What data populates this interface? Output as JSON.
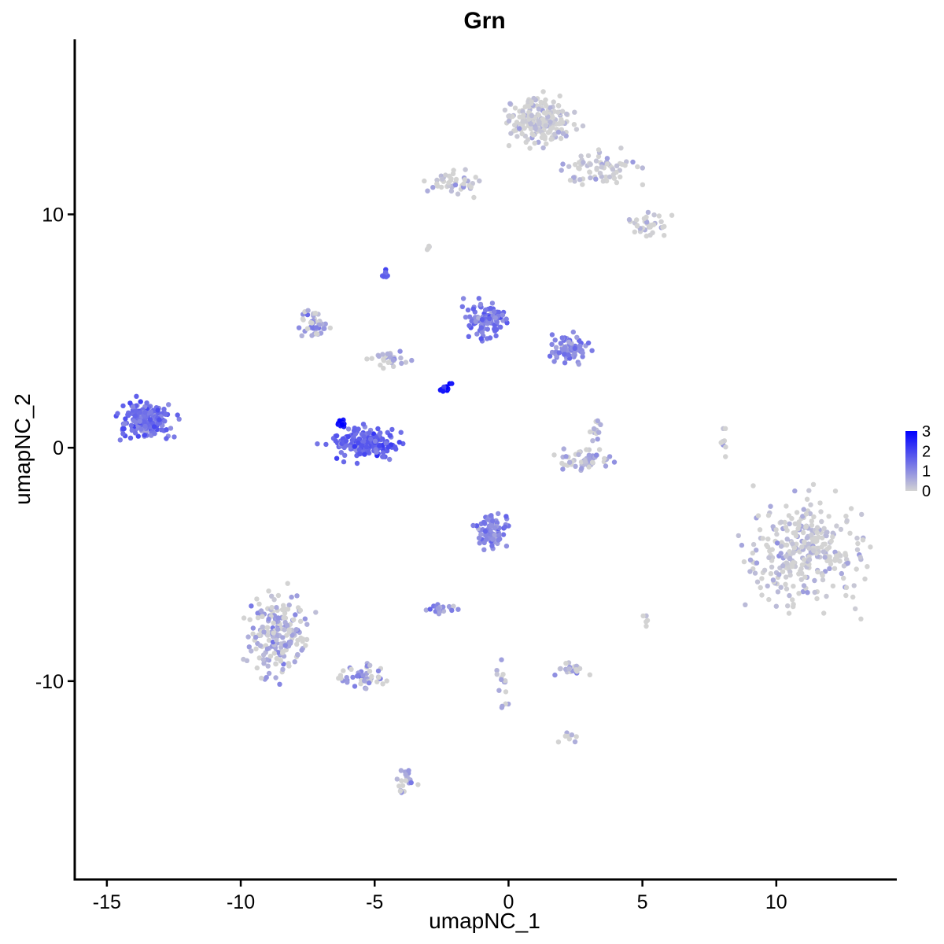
{
  "chart_data": {
    "type": "scatter",
    "title": "Grn",
    "xlabel": "umapNC_1",
    "ylabel": "umapNC_2",
    "xlim": [
      -16.2,
      14.5
    ],
    "ylim": [
      -18.5,
      17.5
    ],
    "xticks": [
      {
        "value": -15,
        "label": "-15"
      },
      {
        "value": -10,
        "label": "-10"
      },
      {
        "value": -5,
        "label": "-5"
      },
      {
        "value": 0,
        "label": "0"
      },
      {
        "value": 5,
        "label": "5"
      },
      {
        "value": 10,
        "label": "10"
      }
    ],
    "yticks": [
      {
        "value": 10,
        "label": "10"
      },
      {
        "value": 0,
        "label": "0"
      },
      {
        "value": -10,
        "label": "-10"
      }
    ],
    "grid": false,
    "legend": {
      "position": "right",
      "type": "colorbar",
      "range": [
        0,
        3
      ],
      "labels": [
        {
          "value": 3,
          "label": "3"
        },
        {
          "value": 2,
          "label": "2"
        },
        {
          "value": 1,
          "label": "1"
        },
        {
          "value": 0,
          "label": "0"
        }
      ]
    },
    "color_low": "#d3d3d3",
    "color_high": "#0000ff",
    "clusters": [
      {
        "center": [
          11.0,
          -4.5
        ],
        "spread": [
          1.8,
          1.8
        ],
        "n": 320,
        "expr": 0.25
      },
      {
        "center": [
          1.2,
          14.0
        ],
        "spread": [
          1.1,
          0.9
        ],
        "n": 200,
        "expr": 0.15
      },
      {
        "center": [
          3.5,
          12.0
        ],
        "spread": [
          1.2,
          0.6
        ],
        "n": 70,
        "expr": 0.2
      },
      {
        "center": [
          5.3,
          9.5
        ],
        "spread": [
          0.6,
          0.5
        ],
        "n": 35,
        "expr": 0.2
      },
      {
        "center": [
          -2.0,
          11.3
        ],
        "spread": [
          0.8,
          0.4
        ],
        "n": 45,
        "expr": 0.25
      },
      {
        "center": [
          -13.5,
          1.2
        ],
        "spread": [
          0.8,
          0.6
        ],
        "n": 180,
        "expr": 1.4
      },
      {
        "center": [
          -5.3,
          0.2
        ],
        "spread": [
          1.0,
          0.5
        ],
        "n": 180,
        "expr": 1.6
      },
      {
        "center": [
          -6.2,
          1.0
        ],
        "spread": [
          0.2,
          0.2
        ],
        "n": 15,
        "expr": 2.9
      },
      {
        "center": [
          -0.8,
          5.5
        ],
        "spread": [
          0.6,
          0.6
        ],
        "n": 90,
        "expr": 1.3
      },
      {
        "center": [
          2.3,
          4.2
        ],
        "spread": [
          0.6,
          0.5
        ],
        "n": 80,
        "expr": 1.1
      },
      {
        "center": [
          -7.3,
          5.3
        ],
        "spread": [
          0.4,
          0.5
        ],
        "n": 45,
        "expr": 0.8
      },
      {
        "center": [
          -4.5,
          3.8
        ],
        "spread": [
          0.6,
          0.3
        ],
        "n": 30,
        "expr": 0.4
      },
      {
        "center": [
          -2.3,
          2.6
        ],
        "spread": [
          0.2,
          0.2
        ],
        "n": 15,
        "expr": 2.8
      },
      {
        "center": [
          -4.6,
          7.4
        ],
        "spread": [
          0.1,
          0.2
        ],
        "n": 10,
        "expr": 1.5
      },
      {
        "center": [
          -0.6,
          -3.6
        ],
        "spread": [
          0.5,
          0.6
        ],
        "n": 80,
        "expr": 1.1
      },
      {
        "center": [
          -8.6,
          -8.0
        ],
        "spread": [
          1.0,
          1.4
        ],
        "n": 200,
        "expr": 0.7
      },
      {
        "center": [
          -5.5,
          -9.8
        ],
        "spread": [
          0.8,
          0.4
        ],
        "n": 50,
        "expr": 0.9
      },
      {
        "center": [
          -3.8,
          -14.3
        ],
        "spread": [
          0.3,
          0.6
        ],
        "n": 20,
        "expr": 0.6
      },
      {
        "center": [
          2.8,
          -0.5
        ],
        "spread": [
          0.9,
          0.4
        ],
        "n": 55,
        "expr": 0.6
      },
      {
        "center": [
          3.2,
          0.8
        ],
        "spread": [
          0.2,
          0.4
        ],
        "n": 15,
        "expr": 0.5
      },
      {
        "center": [
          -2.5,
          -6.9
        ],
        "spread": [
          0.4,
          0.2
        ],
        "n": 20,
        "expr": 1.0
      },
      {
        "center": [
          2.3,
          -9.5
        ],
        "spread": [
          0.5,
          0.2
        ],
        "n": 25,
        "expr": 0.4
      },
      {
        "center": [
          -0.2,
          -10.5
        ],
        "spread": [
          0.2,
          0.9
        ],
        "n": 15,
        "expr": 0.5
      },
      {
        "center": [
          2.3,
          -12.5
        ],
        "spread": [
          0.3,
          0.3
        ],
        "n": 8,
        "expr": 0.4
      },
      {
        "center": [
          8.0,
          0.5
        ],
        "spread": [
          0.1,
          0.6
        ],
        "n": 8,
        "expr": 0.3
      },
      {
        "center": [
          5.1,
          -7.4
        ],
        "spread": [
          0.1,
          0.3
        ],
        "n": 5,
        "expr": 0.2
      },
      {
        "center": [
          -3.0,
          8.6
        ],
        "spread": [
          0.15,
          0.1
        ],
        "n": 5,
        "expr": 0.3
      }
    ]
  }
}
